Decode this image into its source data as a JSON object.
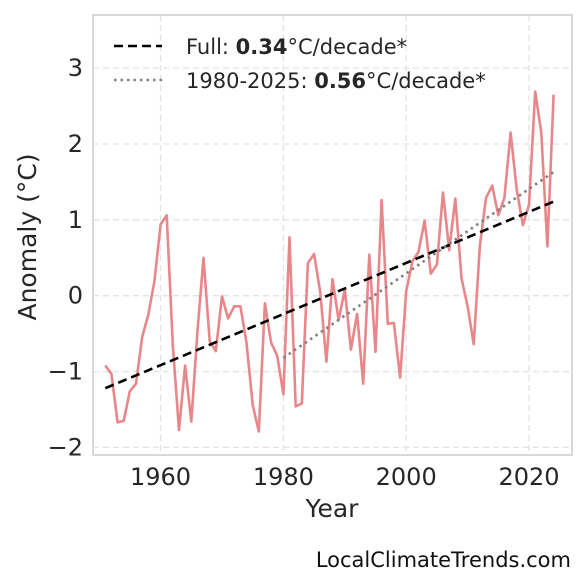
{
  "chart_data": {
    "type": "line",
    "xlabel": "Year",
    "ylabel": "Anomaly (°C)",
    "xlim": [
      1949,
      2027
    ],
    "ylim": [
      -2.1,
      3.7
    ],
    "xticks": [
      1960,
      1980,
      2000,
      2020
    ],
    "yticks": [
      -2,
      -1,
      0,
      1,
      2,
      3
    ],
    "grid": true,
    "legend_position": "top-left",
    "series": [
      {
        "role": "anomaly",
        "color": "#e8878a",
        "x": [
          1951,
          1952,
          1953,
          1954,
          1955,
          1956,
          1957,
          1958,
          1959,
          1960,
          1961,
          1962,
          1963,
          1964,
          1965,
          1966,
          1967,
          1968,
          1969,
          1970,
          1971,
          1972,
          1973,
          1974,
          1975,
          1976,
          1977,
          1978,
          1979,
          1980,
          1981,
          1982,
          1983,
          1984,
          1985,
          1986,
          1987,
          1988,
          1989,
          1990,
          1991,
          1992,
          1993,
          1994,
          1995,
          1996,
          1997,
          1998,
          1999,
          2000,
          2001,
          2002,
          2003,
          2004,
          2005,
          2006,
          2007,
          2008,
          2009,
          2010,
          2011,
          2012,
          2013,
          2014,
          2015,
          2016,
          2017,
          2018,
          2019,
          2020,
          2021,
          2022,
          2023,
          2024
        ],
        "y": [
          -0.92,
          -1.03,
          -1.67,
          -1.65,
          -1.26,
          -1.16,
          -0.55,
          -0.25,
          0.19,
          0.94,
          1.06,
          -0.65,
          -1.77,
          -0.92,
          -1.66,
          -0.48,
          0.5,
          -0.6,
          -0.73,
          -0.01,
          -0.3,
          -0.14,
          -0.14,
          -0.62,
          -1.44,
          -1.79,
          -0.1,
          -0.62,
          -0.79,
          -1.3,
          0.77,
          -1.46,
          -1.42,
          0.43,
          0.55,
          0.05,
          -0.87,
          0.22,
          -0.32,
          0.08,
          -0.71,
          -0.24,
          -1.16,
          0.54,
          -0.74,
          1.26,
          -0.37,
          -0.36,
          -1.08,
          0.06,
          0.45,
          0.58,
          0.99,
          0.29,
          0.41,
          1.36,
          0.6,
          1.28,
          0.23,
          -0.14,
          -0.64,
          0.66,
          1.29,
          1.45,
          1.06,
          1.29,
          2.15,
          1.4,
          0.93,
          1.2,
          2.69,
          2.15,
          0.65,
          2.65
        ]
      },
      {
        "role": "trend-full",
        "name": "Full: 0.34°C/decade*",
        "color": "#000000",
        "style": "dashed",
        "x": [
          1951,
          2024
        ],
        "y": [
          -1.22,
          1.24
        ]
      },
      {
        "role": "trend-recent",
        "name": "1980-2025: 0.56°C/decade*",
        "color": "#808080",
        "style": "dotted",
        "x": [
          1980,
          2024
        ],
        "y": [
          -0.82,
          1.63
        ]
      }
    ],
    "legend": [
      {
        "prefix": "Full: ",
        "value": "0.34",
        "suffix": "°C/decade*"
      },
      {
        "prefix": "1980-2025: ",
        "value": "0.56",
        "suffix": "°C/decade*"
      }
    ]
  },
  "credit": "LocalClimateTrends.com"
}
